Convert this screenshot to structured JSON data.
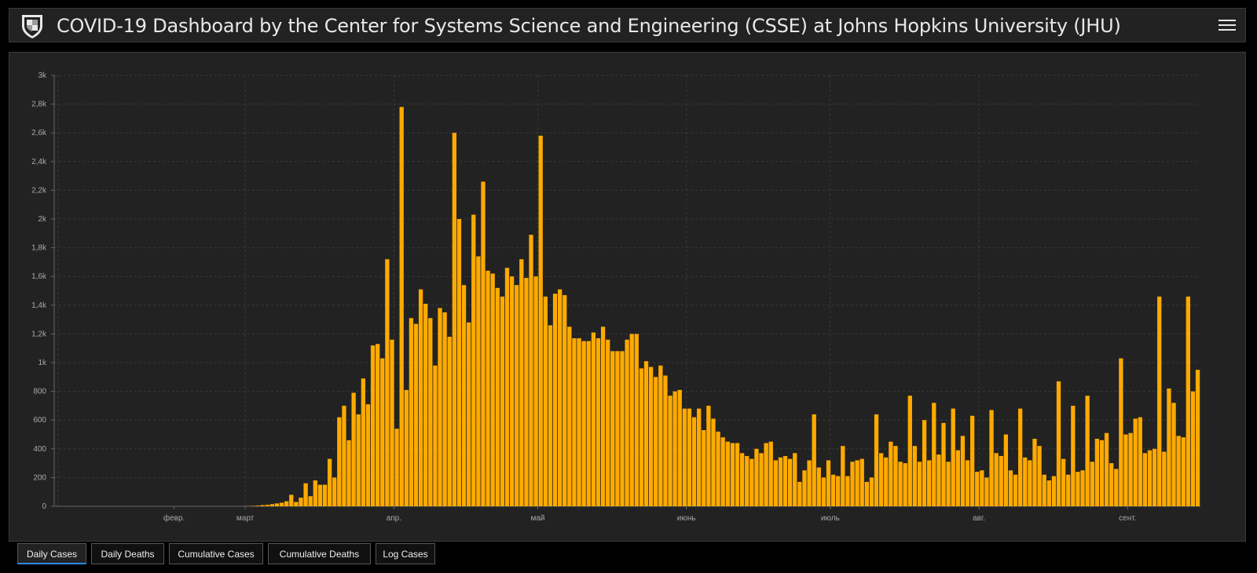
{
  "header": {
    "title": "COVID-19 Dashboard by the Center for Systems Science and Engineering (CSSE) at Johns Hopkins University (JHU)",
    "logo_icon": "jhu-shield-icon",
    "menu_icon": "hamburger-menu-icon"
  },
  "tabs": [
    {
      "label": "Daily Cases",
      "active": true
    },
    {
      "label": "Daily Deaths",
      "active": false
    },
    {
      "label": "Cumulative Cases",
      "active": false
    },
    {
      "label": "Cumulative Deaths",
      "active": false
    },
    {
      "label": "Log Cases",
      "active": false
    }
  ],
  "colors": {
    "bar": "#ffaa00",
    "background": "#222222",
    "page": "#000000",
    "active_tab_underline": "#2b8ce6"
  },
  "chart_data": {
    "type": "bar",
    "title": "",
    "xlabel": "",
    "ylabel": "",
    "ylim": [
      0,
      3000
    ],
    "y_ticks": [
      "0",
      "200",
      "400",
      "600",
      "800",
      "1k",
      "1,2k",
      "1,4k",
      "1,6k",
      "1,8k",
      "2k",
      "2,2k",
      "2,4k",
      "2,6k",
      "2,8k",
      "3k"
    ],
    "x_tick_labels": [
      "февр.",
      "март",
      "апр.",
      "май",
      "июнь",
      "июль",
      "авг.",
      "сент."
    ],
    "grid": true,
    "series": [
      {
        "values": [
          0,
          0,
          0,
          0,
          0,
          0,
          0,
          0,
          0,
          0,
          0,
          0,
          0,
          0,
          0,
          0,
          0,
          0,
          0,
          0,
          0,
          0,
          0,
          0,
          0,
          0,
          0,
          0,
          0,
          0,
          0,
          0,
          0,
          0,
          0,
          0,
          0,
          0,
          0,
          0,
          1,
          3,
          5,
          8,
          10,
          15,
          20,
          25,
          35,
          80,
          30,
          60,
          160,
          70,
          180,
          150,
          150,
          330,
          200,
          620,
          700,
          460,
          790,
          640,
          890,
          710,
          1120,
          1130,
          1030,
          1720,
          1160,
          540,
          2780,
          810,
          1310,
          1270,
          1510,
          1410,
          1310,
          980,
          1380,
          1350,
          1180,
          2600,
          2000,
          1540,
          1280,
          2030,
          1740,
          2260,
          1640,
          1620,
          1520,
          1460,
          1660,
          1600,
          1540,
          1720,
          1590,
          1890,
          1600,
          2580,
          1460,
          1260,
          1480,
          1510,
          1470,
          1250,
          1170,
          1170,
          1150,
          1150,
          1210,
          1170,
          1250,
          1160,
          1080,
          1080,
          1080,
          1160,
          1200,
          1200,
          960,
          1010,
          970,
          900,
          980,
          910,
          770,
          800,
          810,
          680,
          680,
          620,
          680,
          530,
          700,
          610,
          520,
          480,
          450,
          440,
          440,
          370,
          350,
          330,
          400,
          370,
          440,
          450,
          320,
          340,
          350,
          330,
          370,
          170,
          250,
          320,
          640,
          270,
          200,
          320,
          220,
          210,
          420,
          210,
          310,
          320,
          330,
          170,
          200,
          640,
          370,
          340,
          450,
          420,
          310,
          300,
          770,
          420,
          310,
          600,
          320,
          720,
          360,
          580,
          310,
          680,
          390,
          490,
          320,
          630,
          240,
          250,
          200,
          670,
          370,
          350,
          500,
          250,
          220,
          680,
          340,
          320,
          470,
          420,
          220,
          180,
          210,
          870,
          330,
          220,
          700,
          240,
          250,
          770,
          310,
          470,
          460,
          510,
          300,
          260,
          1030,
          500,
          510,
          610,
          620,
          370,
          390,
          400,
          1460,
          380,
          820,
          720,
          490,
          480,
          1460,
          800,
          950
        ]
      }
    ]
  }
}
